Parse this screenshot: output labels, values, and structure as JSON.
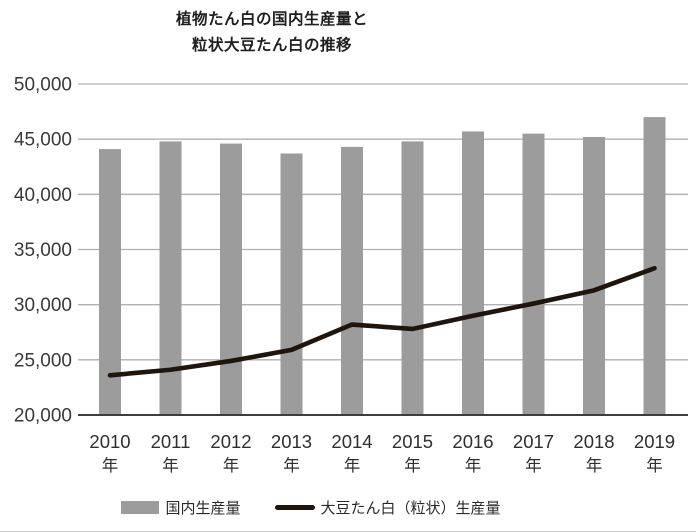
{
  "title": {
    "line1": "植物たん白の国内生産量と",
    "line2": "粒状大豆たん白の推移"
  },
  "chart_data": {
    "type": "bar+line",
    "categories": [
      "2010",
      "2011",
      "2012",
      "2013",
      "2014",
      "2015",
      "2016",
      "2017",
      "2018",
      "2019"
    ],
    "category_suffix": "年",
    "series": [
      {
        "name": "国内生産量",
        "type": "bar",
        "color": "#9c9c9c",
        "values": [
          44100,
          44800,
          44600,
          43700,
          44300,
          44800,
          45700,
          45500,
          45200,
          47000
        ]
      },
      {
        "name": "大豆たん白（粒状）生産量",
        "type": "line",
        "color": "#1e150d",
        "values": [
          23600,
          24100,
          24900,
          25900,
          28200,
          27800,
          29000,
          30100,
          31300,
          33300
        ]
      }
    ],
    "ylim": [
      20000,
      50000
    ],
    "y_ticks": [
      {
        "value": 50000,
        "label": "50,000"
      },
      {
        "value": 45000,
        "label": "45,000"
      },
      {
        "value": 40000,
        "label": "40,000"
      },
      {
        "value": 35000,
        "label": "35,000"
      },
      {
        "value": 30000,
        "label": "30,000"
      },
      {
        "value": 25000,
        "label": "25,000"
      },
      {
        "value": 20000,
        "label": "20,000"
      }
    ],
    "grid": true,
    "legend_position": "bottom",
    "colors": {
      "grid": "#b0b0b0",
      "axis": "#3d3d3d",
      "tick_text": "#3a3a3a",
      "category_text": "#2f2f2f"
    }
  },
  "legend": {
    "items": [
      {
        "label": "国内生産量",
        "swatch": "bar"
      },
      {
        "label": "大豆たん白（粒状）生産量",
        "swatch": "line"
      }
    ]
  }
}
